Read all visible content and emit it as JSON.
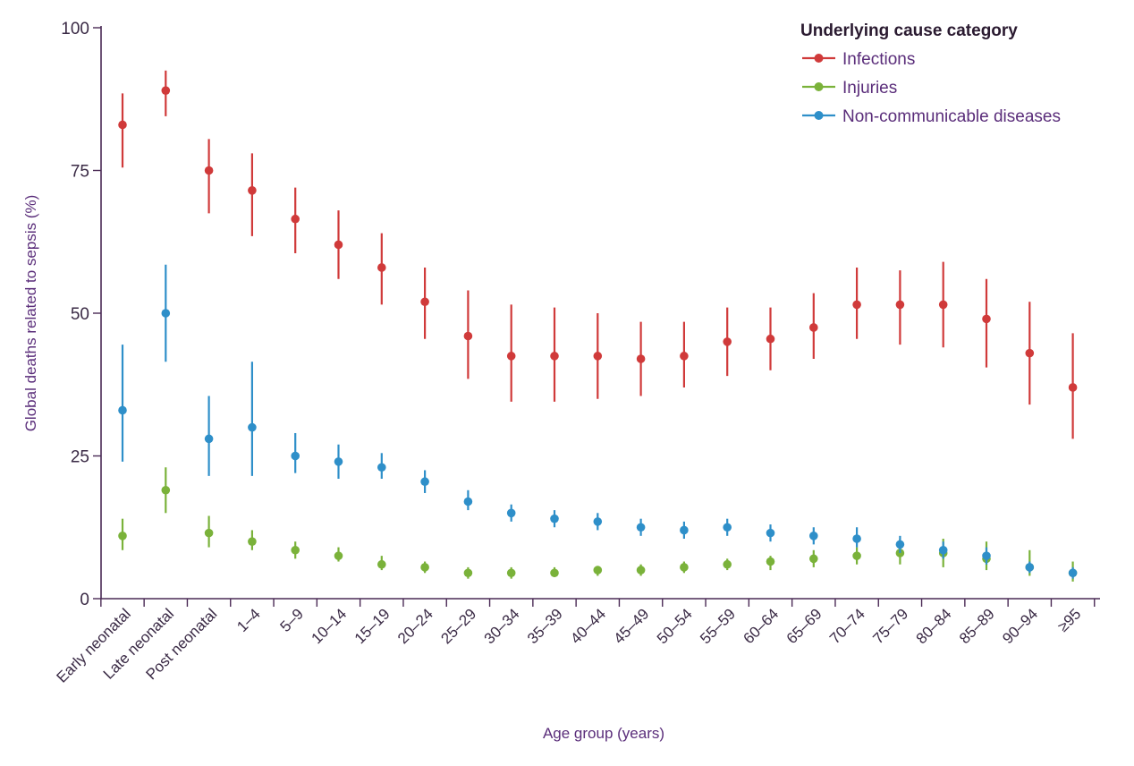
{
  "chart_data": {
    "type": "scatter",
    "title": "",
    "xlabel": "Age group (years)",
    "ylabel": "Global deaths related to sepsis (%)",
    "ylim": [
      0,
      100
    ],
    "yticks": [
      0,
      25,
      50,
      75,
      100
    ],
    "categories": [
      "Early neonatal",
      "Late neonatal",
      "Post neonatal",
      "1–4",
      "5–9",
      "10–14",
      "15–19",
      "20–24",
      "25–29",
      "30–34",
      "35–39",
      "40–44",
      "45–49",
      "50–54",
      "55–59",
      "60–64",
      "65–69",
      "70–74",
      "75–79",
      "80–84",
      "85–89",
      "90–94",
      "≥95"
    ],
    "legend_title": "Underlying cause category",
    "legend_position": "top-right",
    "series": [
      {
        "name": "Infections",
        "color": "#d03a3a",
        "values": [
          83,
          89,
          75,
          71.5,
          66.5,
          62,
          58,
          52,
          46,
          42.5,
          42.5,
          42.5,
          42,
          42.5,
          45,
          45.5,
          47.5,
          51.5,
          51.5,
          51.5,
          49,
          43,
          37
        ],
        "lower": [
          75.5,
          84.5,
          67.5,
          63.5,
          60.5,
          56,
          51.5,
          45.5,
          38.5,
          34.5,
          34.5,
          35,
          35.5,
          37,
          39,
          40,
          42,
          45.5,
          44.5,
          44,
          40.5,
          34,
          28
        ],
        "upper": [
          88.5,
          92.5,
          80.5,
          78,
          72,
          68,
          64,
          58,
          54,
          51.5,
          51,
          50,
          48.5,
          48.5,
          51,
          51,
          53.5,
          58,
          57.5,
          59,
          56,
          52,
          46.5
        ]
      },
      {
        "name": "Injuries",
        "color": "#7ab23a",
        "values": [
          11,
          19,
          11.5,
          10,
          8.5,
          7.5,
          6,
          5.5,
          4.5,
          4.5,
          4.5,
          5,
          5,
          5.5,
          6,
          6.5,
          7,
          7.5,
          8,
          8,
          7,
          5.5,
          4.5
        ],
        "lower": [
          8.5,
          15,
          9,
          8.5,
          7,
          6.5,
          5,
          4.5,
          3.5,
          3.5,
          4,
          4,
          4,
          4.5,
          5,
          5,
          5.5,
          6,
          6,
          5.5,
          5,
          4,
          3
        ],
        "upper": [
          14,
          23,
          14.5,
          12,
          10,
          9,
          7.5,
          6.5,
          5.5,
          5.5,
          5.5,
          5.5,
          6,
          6.5,
          7,
          7.5,
          8.5,
          9,
          10.5,
          10.5,
          10,
          8.5,
          6.5
        ]
      },
      {
        "name": "Non-communicable diseases",
        "color": "#2e8fc9",
        "values": [
          33,
          50,
          28,
          30,
          25,
          24,
          23,
          20.5,
          17,
          15,
          14,
          13.5,
          12.5,
          12,
          12.5,
          11.5,
          11,
          10.5,
          9.5,
          8.5,
          7.5,
          5.5,
          4.5
        ],
        "lower": [
          24,
          41.5,
          21.5,
          21.5,
          22,
          21,
          21,
          18.5,
          15.5,
          13.5,
          12.5,
          12,
          11,
          10.5,
          11,
          10,
          9.5,
          9,
          8,
          7,
          6,
          4.5,
          3.5
        ],
        "upper": [
          44.5,
          58.5,
          35.5,
          41.5,
          29,
          27,
          25.5,
          22.5,
          19,
          16.5,
          15.5,
          15,
          14,
          13.5,
          14,
          13,
          12.5,
          12.5,
          11,
          10,
          9,
          6.5,
          5.5
        ]
      }
    ]
  }
}
